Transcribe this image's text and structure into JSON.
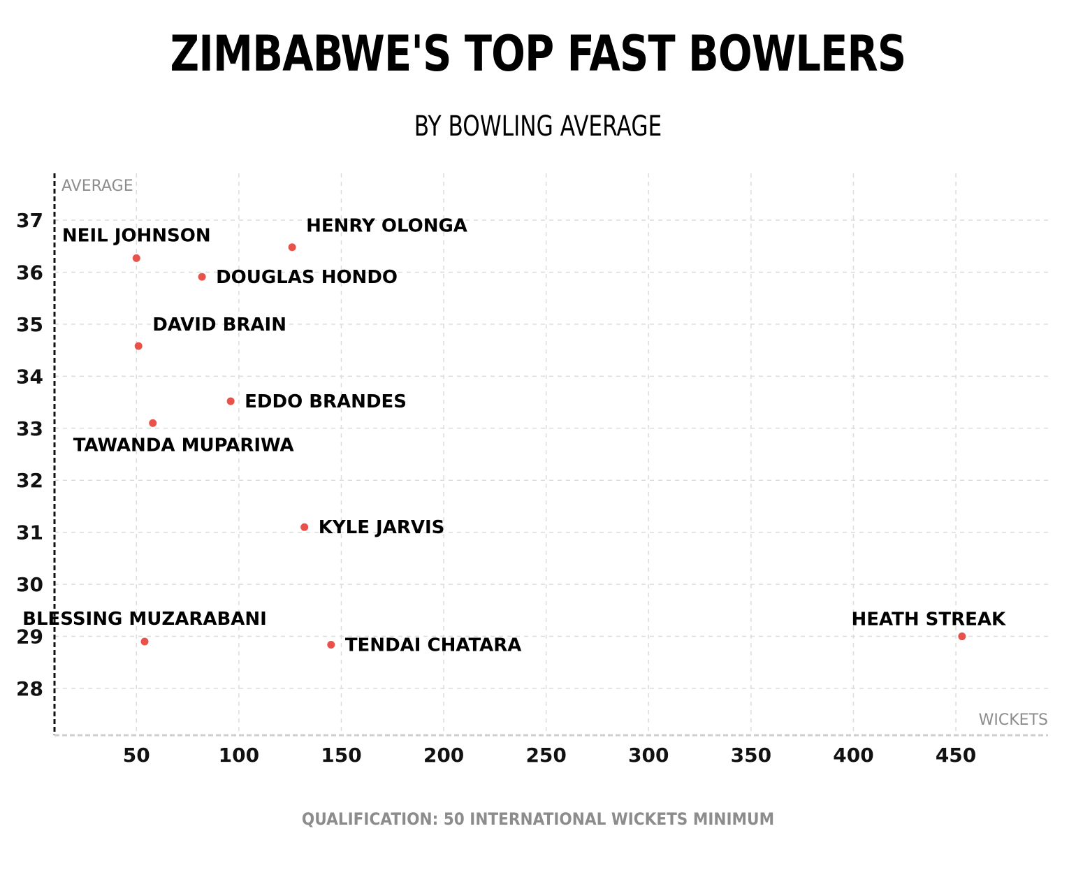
{
  "chart_data": {
    "type": "scatter",
    "title": "ZIMBABWE'S TOP FAST BOWLERS",
    "subtitle": "BY BOWLING AVERAGE",
    "xlabel": "WICKETS",
    "ylabel": "AVERAGE",
    "xlim": [
      10,
      495
    ],
    "ylim": [
      27.1,
      37.9
    ],
    "xticks": [
      50,
      100,
      150,
      200,
      250,
      300,
      350,
      400,
      450
    ],
    "yticks": [
      28,
      29,
      30,
      31,
      32,
      33,
      34,
      35,
      36,
      37
    ],
    "grid": true,
    "point_color": "#e8524a",
    "points": [
      {
        "name": "NEIL JOHNSON",
        "x": 50,
        "y": 36.27,
        "label_pos": "top"
      },
      {
        "name": "HENRY OLONGA",
        "x": 126,
        "y": 36.48,
        "label_pos": "top-right"
      },
      {
        "name": "DOUGLAS HONDO",
        "x": 82,
        "y": 35.91,
        "label_pos": "right"
      },
      {
        "name": "DAVID BRAIN",
        "x": 51,
        "y": 34.58,
        "label_pos": "top-right"
      },
      {
        "name": "EDDO BRANDES",
        "x": 96,
        "y": 33.52,
        "label_pos": "right"
      },
      {
        "name": "TAWANDA MUPARIWA",
        "x": 58,
        "y": 33.1,
        "label_pos": "bottom"
      },
      {
        "name": "KYLE JARVIS",
        "x": 132,
        "y": 31.1,
        "label_pos": "right"
      },
      {
        "name": "BLESSING MUZARABANI",
        "x": 54,
        "y": 28.9,
        "label_pos": "top"
      },
      {
        "name": "TENDAI CHATARA",
        "x": 145,
        "y": 28.84,
        "label_pos": "right"
      },
      {
        "name": "HEATH STREAK",
        "x": 453,
        "y": 29.0,
        "label_pos": "top-left"
      }
    ]
  },
  "footnote": "QUALIFICATION: 50 INTERNATIONAL WICKETS MINIMUM"
}
